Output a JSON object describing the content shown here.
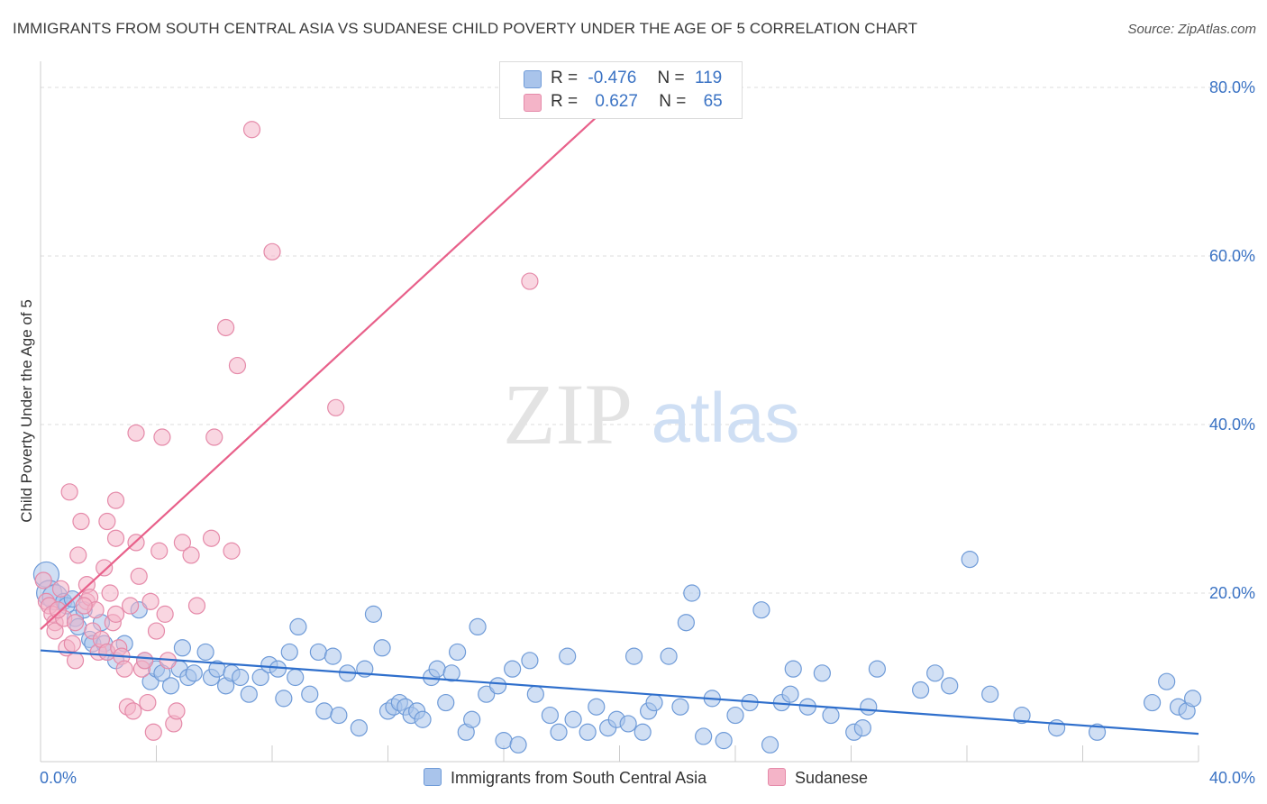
{
  "header": {
    "title": "IMMIGRANTS FROM SOUTH CENTRAL ASIA VS SUDANESE CHILD POVERTY UNDER THE AGE OF 5 CORRELATION CHART",
    "source": "Source: ZipAtlas.com"
  },
  "watermark": {
    "zip": "ZIP",
    "atlas": "atlas"
  },
  "legend": {
    "rows": [
      {
        "r_label": "R =",
        "r_value": "-0.476",
        "n_label": "N =",
        "n_value": "119",
        "color": "#a9c4eb"
      },
      {
        "r_label": "R =",
        "r_value": "0.627",
        "n_label": "N =",
        "n_value": "65",
        "color": "#f4b4c8"
      }
    ]
  },
  "bottom_legend": {
    "series1": "Immigrants from South Central Asia",
    "series2": "Sudanese"
  },
  "colors": {
    "blue_fill": "#a9c4eb",
    "blue_stroke": "#6f9bd8",
    "blue_line": "#2f6fcc",
    "pink_fill": "#f4b4c8",
    "pink_stroke": "#e58aa9",
    "pink_line": "#e8608a",
    "tick_text": "#3b73c4",
    "grid": "#dddddd"
  },
  "chart_data": {
    "type": "scatter",
    "title": "IMMIGRANTS FROM SOUTH CENTRAL ASIA VS SUDANESE CHILD POVERTY UNDER THE AGE OF 5 CORRELATION CHART",
    "xlabel": "",
    "ylabel": "Child Poverty Under the Age of 5",
    "xlim": [
      0,
      40
    ],
    "ylim": [
      0,
      80
    ],
    "x_tick_labels": [
      "0.0%",
      "40.0%"
    ],
    "y_ticks": [
      20,
      40,
      60,
      80
    ],
    "y_tick_labels": [
      "20.0%",
      "40.0%",
      "60.0%",
      "80.0%"
    ],
    "grid": true,
    "legend_position": "top-center",
    "series": [
      {
        "name": "Immigrants from South Central Asia",
        "points": [
          [
            0.2,
            22.2
          ],
          [
            0.3,
            20.0
          ],
          [
            0.5,
            19.5
          ],
          [
            0.8,
            19.0
          ],
          [
            0.9,
            18.5
          ],
          [
            1.1,
            19.3
          ],
          [
            1.2,
            17.0
          ],
          [
            1.3,
            16.0
          ],
          [
            1.5,
            18.0
          ],
          [
            1.7,
            14.5
          ],
          [
            1.8,
            14.0
          ],
          [
            2.1,
            16.5
          ],
          [
            2.2,
            14.0
          ],
          [
            2.3,
            13.0
          ],
          [
            2.6,
            12.0
          ],
          [
            2.9,
            14.0
          ],
          [
            3.4,
            18.0
          ],
          [
            3.6,
            12.0
          ],
          [
            3.8,
            9.5
          ],
          [
            4.0,
            11.0
          ],
          [
            4.2,
            10.5
          ],
          [
            4.5,
            9.0
          ],
          [
            4.8,
            11.0
          ],
          [
            4.9,
            13.5
          ],
          [
            5.1,
            10.0
          ],
          [
            5.3,
            10.5
          ],
          [
            5.7,
            13.0
          ],
          [
            5.9,
            10.0
          ],
          [
            6.1,
            11.0
          ],
          [
            6.4,
            9.0
          ],
          [
            6.6,
            10.5
          ],
          [
            6.9,
            10.0
          ],
          [
            7.2,
            8.0
          ],
          [
            7.6,
            10.0
          ],
          [
            7.9,
            11.5
          ],
          [
            8.2,
            11.0
          ],
          [
            8.4,
            7.5
          ],
          [
            8.6,
            13.0
          ],
          [
            8.8,
            10.0
          ],
          [
            8.9,
            16.0
          ],
          [
            9.3,
            8.0
          ],
          [
            9.6,
            13.0
          ],
          [
            9.8,
            6.0
          ],
          [
            10.1,
            12.5
          ],
          [
            10.3,
            5.5
          ],
          [
            10.6,
            10.5
          ],
          [
            11.0,
            4.0
          ],
          [
            11.2,
            11.0
          ],
          [
            11.5,
            17.5
          ],
          [
            11.8,
            13.5
          ],
          [
            12.0,
            6.0
          ],
          [
            12.2,
            6.5
          ],
          [
            12.4,
            7.0
          ],
          [
            12.6,
            6.5
          ],
          [
            12.8,
            5.5
          ],
          [
            13.0,
            6.0
          ],
          [
            13.2,
            5.0
          ],
          [
            13.5,
            10.0
          ],
          [
            13.7,
            11.0
          ],
          [
            14.0,
            7.0
          ],
          [
            14.2,
            10.5
          ],
          [
            14.4,
            13.0
          ],
          [
            14.7,
            3.5
          ],
          [
            14.9,
            5.0
          ],
          [
            15.1,
            16.0
          ],
          [
            15.4,
            8.0
          ],
          [
            15.8,
            9.0
          ],
          [
            16.0,
            2.5
          ],
          [
            16.3,
            11.0
          ],
          [
            16.5,
            2.0
          ],
          [
            16.9,
            12.0
          ],
          [
            17.1,
            8.0
          ],
          [
            17.6,
            5.5
          ],
          [
            17.9,
            3.5
          ],
          [
            18.2,
            12.5
          ],
          [
            18.4,
            5.0
          ],
          [
            18.9,
            3.5
          ],
          [
            19.2,
            6.5
          ],
          [
            19.6,
            4.0
          ],
          [
            19.9,
            5.0
          ],
          [
            20.3,
            4.5
          ],
          [
            20.5,
            12.5
          ],
          [
            20.8,
            3.5
          ],
          [
            21.0,
            6.0
          ],
          [
            21.2,
            7.0
          ],
          [
            21.7,
            12.5
          ],
          [
            22.1,
            6.5
          ],
          [
            22.3,
            16.5
          ],
          [
            22.5,
            20.0
          ],
          [
            22.9,
            3.0
          ],
          [
            23.2,
            7.5
          ],
          [
            23.6,
            2.5
          ],
          [
            24.0,
            5.5
          ],
          [
            24.5,
            7.0
          ],
          [
            24.9,
            18.0
          ],
          [
            25.2,
            2.0
          ],
          [
            25.6,
            7.0
          ],
          [
            25.9,
            8.0
          ],
          [
            26.0,
            11.0
          ],
          [
            26.5,
            6.5
          ],
          [
            27.0,
            10.5
          ],
          [
            27.3,
            5.5
          ],
          [
            28.1,
            3.5
          ],
          [
            28.4,
            4.0
          ],
          [
            28.6,
            6.5
          ],
          [
            28.9,
            11.0
          ],
          [
            30.4,
            8.5
          ],
          [
            30.9,
            10.5
          ],
          [
            31.4,
            9.0
          ],
          [
            32.1,
            24.0
          ],
          [
            32.8,
            8.0
          ],
          [
            33.9,
            5.5
          ],
          [
            35.1,
            4.0
          ],
          [
            36.5,
            3.5
          ],
          [
            38.4,
            7.0
          ],
          [
            38.9,
            9.5
          ],
          [
            39.3,
            6.5
          ],
          [
            39.6,
            6.0
          ],
          [
            39.8,
            7.5
          ]
        ]
      },
      {
        "name": "Sudanese",
        "points": [
          [
            0.1,
            21.5
          ],
          [
            0.2,
            19.0
          ],
          [
            0.3,
            18.5
          ],
          [
            0.4,
            17.5
          ],
          [
            0.5,
            16.5
          ],
          [
            0.5,
            15.5
          ],
          [
            0.7,
            20.5
          ],
          [
            0.8,
            17.0
          ],
          [
            0.9,
            13.5
          ],
          [
            1.0,
            32.0
          ],
          [
            1.1,
            14.0
          ],
          [
            1.2,
            12.0
          ],
          [
            1.2,
            16.5
          ],
          [
            1.3,
            24.5
          ],
          [
            1.4,
            28.5
          ],
          [
            1.6,
            21.0
          ],
          [
            1.6,
            19.0
          ],
          [
            1.7,
            19.5
          ],
          [
            1.8,
            15.5
          ],
          [
            1.9,
            18.0
          ],
          [
            2.0,
            13.0
          ],
          [
            2.1,
            14.5
          ],
          [
            2.2,
            23.0
          ],
          [
            2.3,
            13.0
          ],
          [
            2.3,
            28.5
          ],
          [
            2.4,
            20.0
          ],
          [
            2.5,
            16.5
          ],
          [
            2.6,
            31.0
          ],
          [
            2.6,
            17.5
          ],
          [
            2.7,
            13.5
          ],
          [
            2.8,
            12.5
          ],
          [
            2.9,
            11.0
          ],
          [
            3.0,
            6.5
          ],
          [
            3.1,
            18.5
          ],
          [
            3.2,
            6.0
          ],
          [
            3.3,
            26.0
          ],
          [
            3.3,
            39.0
          ],
          [
            3.4,
            22.0
          ],
          [
            3.5,
            11.0
          ],
          [
            3.6,
            12.0
          ],
          [
            3.7,
            7.0
          ],
          [
            3.8,
            19.0
          ],
          [
            3.9,
            3.5
          ],
          [
            4.0,
            15.5
          ],
          [
            4.1,
            25.0
          ],
          [
            4.2,
            38.5
          ],
          [
            4.3,
            17.5
          ],
          [
            4.4,
            12.0
          ],
          [
            4.6,
            4.5
          ],
          [
            4.7,
            6.0
          ],
          [
            4.9,
            26.0
          ],
          [
            5.2,
            24.5
          ],
          [
            5.4,
            18.5
          ],
          [
            5.9,
            26.5
          ],
          [
            6.0,
            38.5
          ],
          [
            6.4,
            51.5
          ],
          [
            6.6,
            25.0
          ],
          [
            6.8,
            47.0
          ],
          [
            7.3,
            75.0
          ],
          [
            8.0,
            60.5
          ],
          [
            10.2,
            42.0
          ],
          [
            16.9,
            57.0
          ],
          [
            2.6,
            26.5
          ],
          [
            1.5,
            18.5
          ],
          [
            0.6,
            18.0
          ]
        ]
      }
    ],
    "trendlines": [
      {
        "series": "Immigrants from South Central Asia",
        "x": [
          0,
          40
        ],
        "y": [
          13.2,
          3.3
        ]
      },
      {
        "series": "Sudanese",
        "x": [
          0,
          20
        ],
        "y": [
          15.7,
          79.0
        ]
      }
    ]
  }
}
